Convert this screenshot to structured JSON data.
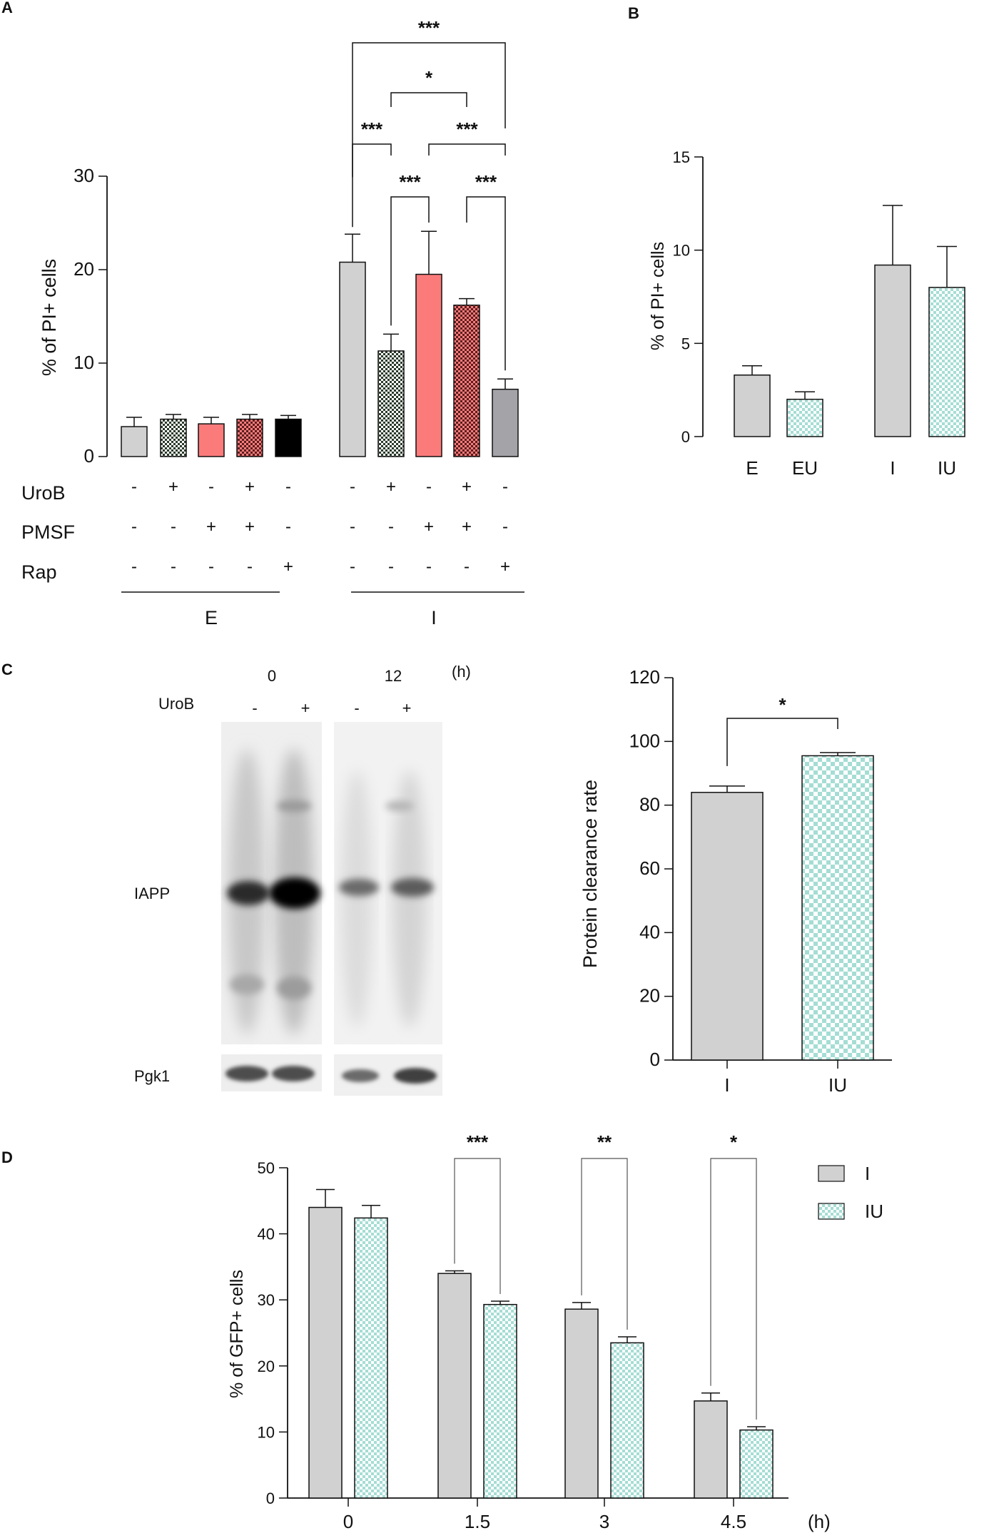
{
  "colors": {
    "gray": "#d1d1d1",
    "salmon": "#fb7b7b",
    "black": "#000000",
    "dark_gray": "#a3a3a8",
    "check_green": "#a5ddd4",
    "check_salmon_dark": "#6e2a2a"
  },
  "chart_data": [
    {
      "panel": "A",
      "type": "bar",
      "ylabel": "% of PI+ cells",
      "ylim": [
        0,
        30
      ],
      "yticks": [
        "0",
        "10",
        "20",
        "30"
      ],
      "bars": [
        {
          "group": "E",
          "value": 3.2,
          "error": 1.0,
          "fill": "gray",
          "pattern": "none"
        },
        {
          "group": "E",
          "value": 4.0,
          "error": 0.5,
          "fill": "green",
          "pattern": "checker"
        },
        {
          "group": "E",
          "value": 3.5,
          "error": 0.7,
          "fill": "salmon",
          "pattern": "none"
        },
        {
          "group": "E",
          "value": 4.0,
          "error": 0.5,
          "fill": "salmon",
          "pattern": "checker"
        },
        {
          "group": "E",
          "value": 4.0,
          "error": 0.4,
          "fill": "black",
          "pattern": "none"
        },
        {
          "group": "I",
          "value": 20.8,
          "error": 3.0,
          "fill": "gray",
          "pattern": "none"
        },
        {
          "group": "I",
          "value": 11.3,
          "error": 1.8,
          "fill": "green",
          "pattern": "checker"
        },
        {
          "group": "I",
          "value": 19.5,
          "error": 4.6,
          "fill": "salmon",
          "pattern": "none"
        },
        {
          "group": "I",
          "value": 16.2,
          "error": 0.7,
          "fill": "salmon",
          "pattern": "checker"
        },
        {
          "group": "I",
          "value": 7.2,
          "error": 1.1,
          "fill": "dark_gray",
          "pattern": "none"
        }
      ],
      "rows": [
        {
          "label": "UroB",
          "values": [
            "-",
            "+",
            "-",
            "+",
            "-",
            "-",
            "+",
            "-",
            "+",
            "-"
          ]
        },
        {
          "label": "PMSF",
          "values": [
            "-",
            "-",
            "+",
            "+",
            "-",
            "-",
            "-",
            "+",
            "+",
            "-"
          ]
        },
        {
          "label": "Rap",
          "values": [
            "-",
            "-",
            "-",
            "-",
            "+",
            "-",
            "-",
            "-",
            "-",
            "+"
          ]
        }
      ],
      "groups": [
        "E",
        "I"
      ],
      "significance": [
        {
          "from": 5,
          "to": 9,
          "label": "***"
        },
        {
          "from": 6,
          "to": 8,
          "label": "*"
        },
        {
          "from": 5,
          "to": 6,
          "label": "***"
        },
        {
          "from": 7,
          "to": 9,
          "label": "***"
        },
        {
          "from": 6,
          "to": 7,
          "label": "***"
        },
        {
          "from": 8,
          "to": 9,
          "label": "***"
        }
      ]
    },
    {
      "panel": "B",
      "type": "bar",
      "ylabel": "% of PI+ cells",
      "ylim": [
        0,
        15
      ],
      "yticks": [
        "0",
        "5",
        "10",
        "15"
      ],
      "categories": [
        "E",
        "EU",
        "I",
        "IU"
      ],
      "values": [
        3.3,
        2.0,
        9.2,
        8.0
      ],
      "errors": [
        0.5,
        0.4,
        3.2,
        2.2
      ],
      "patterns": [
        "none",
        "checker",
        "none",
        "checker"
      ]
    },
    {
      "panel": "C",
      "type": "bar",
      "ylabel": "Protein clearance rate",
      "ylim": [
        0,
        120
      ],
      "yticks": [
        "0",
        "20",
        "40",
        "60",
        "80",
        "100",
        "120"
      ],
      "categories": [
        "I",
        "IU"
      ],
      "values": [
        84,
        95.5
      ],
      "errors": [
        2.0,
        1.0
      ],
      "patterns": [
        "none",
        "checker"
      ],
      "significance": [
        {
          "from": 0,
          "to": 1,
          "label": "*"
        }
      ]
    },
    {
      "panel": "D",
      "type": "bar",
      "ylabel": "% of GFP+ cells",
      "ylim": [
        0,
        50
      ],
      "yticks": [
        "0",
        "10",
        "20",
        "30",
        "40",
        "50"
      ],
      "categories": [
        "0",
        "1.5",
        "3",
        "4.5"
      ],
      "x_unit": "(h)",
      "series": [
        {
          "name": "I",
          "values": [
            44,
            34,
            28.6,
            14.7
          ],
          "errors": [
            2.7,
            0.4,
            1.0,
            1.2
          ],
          "pattern": "none"
        },
        {
          "name": "IU",
          "values": [
            42.4,
            29.3,
            23.5,
            10.3
          ],
          "errors": [
            1.9,
            0.5,
            0.9,
            0.5
          ],
          "pattern": "checker"
        }
      ],
      "significance": [
        {
          "category": 1,
          "label": "***"
        },
        {
          "category": 2,
          "label": "**"
        },
        {
          "category": 3,
          "label": "*"
        }
      ],
      "legend_position": "top-right"
    }
  ],
  "panels": {
    "a_letter": "A",
    "b_letter": "B",
    "c_letter": "C",
    "d_letter": "D"
  },
  "blot": {
    "time_labels": [
      "0",
      "12"
    ],
    "time_unit": "(h)",
    "treatment_label": "UroB",
    "lane_signs": [
      "-",
      "+",
      "-",
      "+"
    ],
    "band_labels": [
      "IAPP",
      "Pgk1"
    ]
  }
}
